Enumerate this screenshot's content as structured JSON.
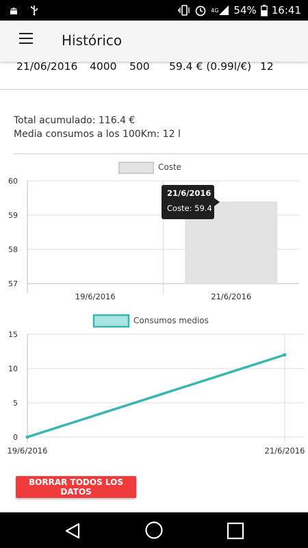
{
  "status_bar": {
    "network": "4G",
    "battery": "54%",
    "time": "16:41"
  },
  "app_bar": {
    "title": "Histórico"
  },
  "record": {
    "date": "21/06/2016",
    "km": "4000",
    "liters": "500",
    "price": "59.4 € (0.99l/€)",
    "consumption": "12"
  },
  "summary": {
    "total": "Total acumulado: 116.4 €",
    "average": "Media consumos a los 100Km: 12 l"
  },
  "chart_data": [
    {
      "type": "bar",
      "legend": [
        "Coste"
      ],
      "categories": [
        "19/6/2016",
        "21/6/2016"
      ],
      "series": [
        {
          "name": "Coste",
          "values": [
            57,
            59.4
          ]
        }
      ],
      "ylim": [
        57,
        60
      ],
      "yticks": [
        "57",
        "58",
        "59",
        "60"
      ],
      "tooltip": {
        "title": "21/6/2016",
        "body": "Coste: 59.4"
      },
      "grid": true,
      "legend_position": "top",
      "colors": {
        "bar": "#e3e3e3"
      }
    },
    {
      "type": "line",
      "legend": [
        "Consumos medios"
      ],
      "x": [
        "19/6/2016",
        "21/6/2016"
      ],
      "series": [
        {
          "name": "Consumos medios",
          "values": [
            0,
            12
          ]
        }
      ],
      "ylim": [
        0,
        15
      ],
      "yticks": [
        "0",
        "5",
        "10",
        "15"
      ],
      "grid": true,
      "legend_position": "top",
      "colors": {
        "line": "#3ab6b0"
      }
    }
  ],
  "actions": {
    "delete_all": "BORRAR TODOS LOS DATOS"
  }
}
